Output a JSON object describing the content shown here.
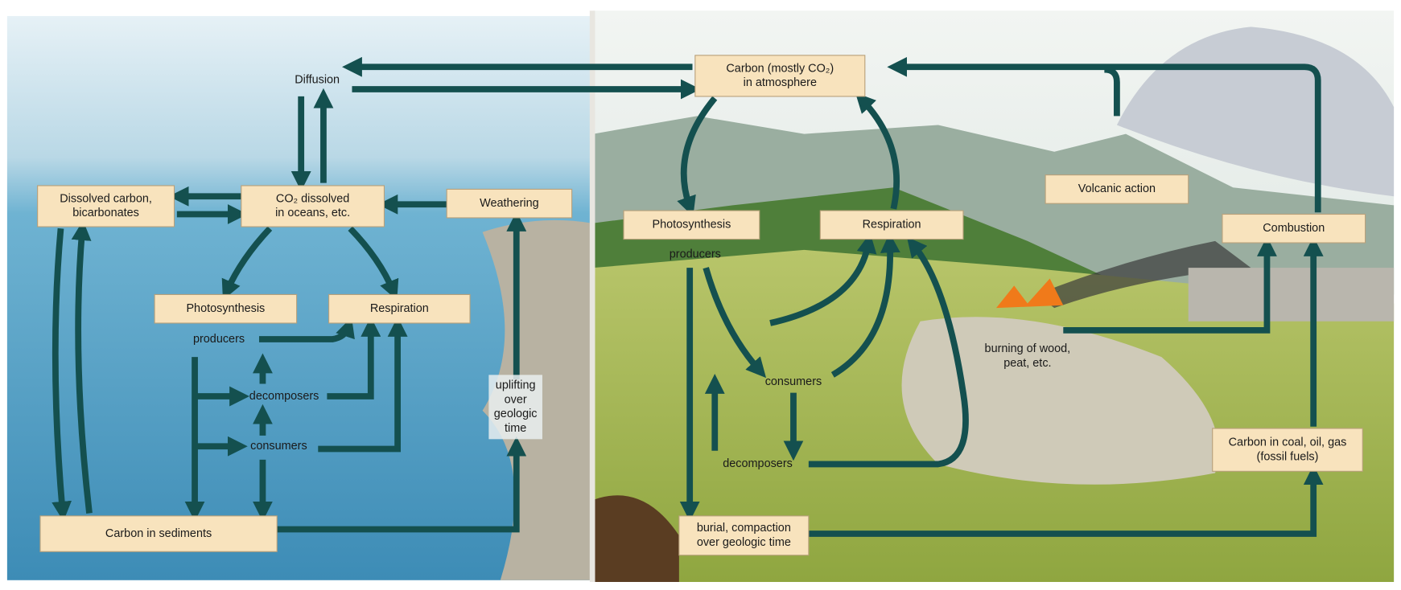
{
  "diagram": {
    "nodes": [
      {
        "lines": [
          "Carbon (mostly CO₂)",
          "in atmosphere"
        ]
      },
      {
        "lines": [
          "Dissolved carbon,",
          "bicarbonates"
        ]
      },
      {
        "lines": [
          "CO₂ dissolved",
          "in oceans, etc."
        ]
      },
      {
        "lines": [
          "Weathering"
        ]
      },
      {
        "lines": [
          "Photosynthesis"
        ]
      },
      {
        "lines": [
          "Respiration"
        ]
      },
      {
        "lines": [
          "Carbon in sediments"
        ]
      },
      {
        "lines": [
          "Photosynthesis"
        ]
      },
      {
        "lines": [
          "Respiration"
        ]
      },
      {
        "lines": [
          "Volcanic action"
        ]
      },
      {
        "lines": [
          "Combustion"
        ]
      },
      {
        "lines": [
          "Carbon in coal, oil, gas",
          "(fossil fuels)"
        ]
      },
      {
        "lines": [
          "burial, compaction",
          "over geologic time"
        ]
      }
    ],
    "labels": [
      {
        "lines": [
          "Diffusion"
        ]
      },
      {
        "lines": [
          "producers"
        ]
      },
      {
        "lines": [
          "decomposers"
        ]
      },
      {
        "lines": [
          "consumers"
        ]
      },
      {
        "lines": [
          "uplifting",
          "over",
          "geologic",
          "time"
        ]
      },
      {
        "lines": [
          "producers"
        ]
      },
      {
        "lines": [
          "consumers"
        ]
      },
      {
        "lines": [
          "decomposers"
        ]
      },
      {
        "lines": [
          "burning of wood,",
          "peat, etc."
        ]
      }
    ]
  }
}
